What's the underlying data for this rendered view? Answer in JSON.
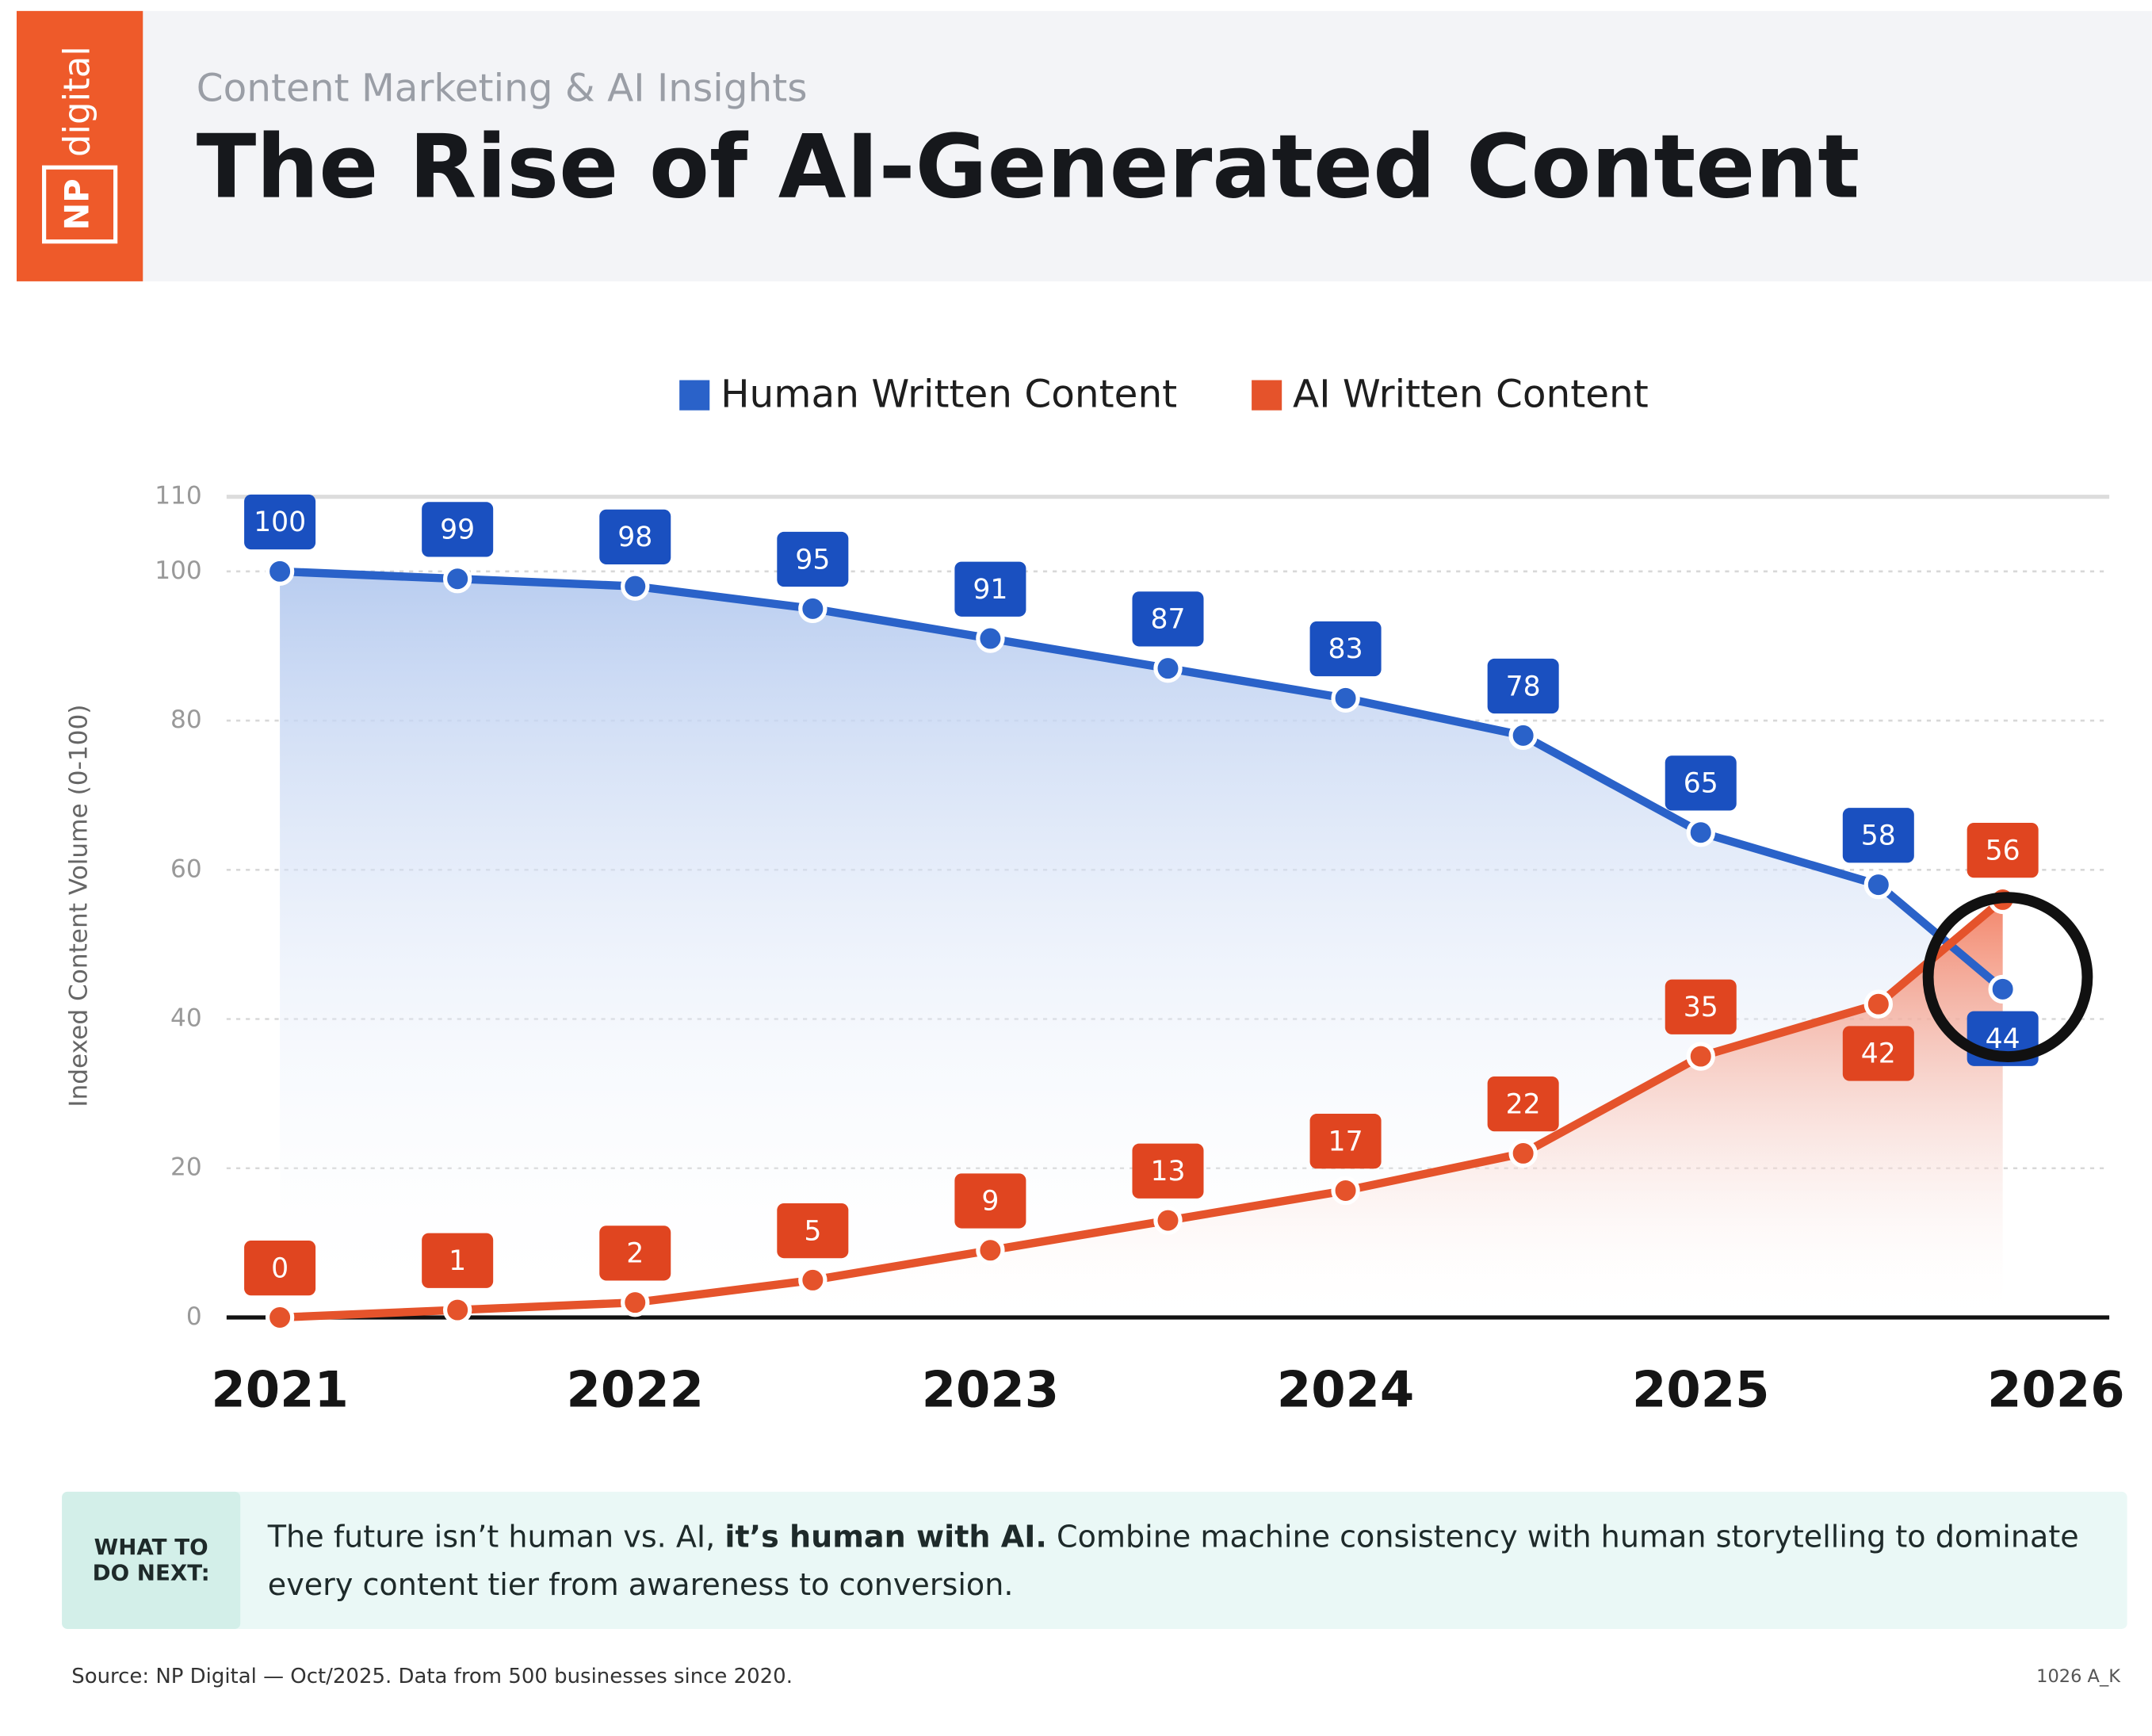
{
  "brand": {
    "top": "digital",
    "box": "NP"
  },
  "callout": {
    "label_lines": [
      "WHAT TO",
      "DO NEXT:"
    ],
    "text_parts": [
      "The future isn’t human vs. AI, ",
      "it’s human with AI.",
      " Combine machine consistency with human storytelling to dominate",
      "every content tier from awareness to conversion."
    ]
  },
  "source": "Source: NP Digital — Oct/2025. Data from 500 businesses since 2020.",
  "code": "1026 A_K",
  "chart_data": {
    "type": "line",
    "subtitle": "Content Marketing & AI Insights",
    "title": "The Rise of AI-Generated Content",
    "y_label": "Indexed Content Volume (0-100)",
    "x": [
      2021,
      2021.5,
      2022,
      2022.5,
      2023,
      2023.5,
      2024,
      2024.5,
      2025,
      2025.5,
      2025.85
    ],
    "xlim": [
      2020.85,
      2026.15
    ],
    "xticks": [
      2021,
      2022,
      2023,
      2024,
      2025,
      2026
    ],
    "ylim": [
      0,
      110
    ],
    "yticks": [
      0,
      20,
      40,
      60,
      80,
      100,
      110
    ],
    "grid": true,
    "series": [
      {
        "name": "Human Written Content",
        "color": "#2a62c9",
        "values": [
          100,
          99,
          98,
          95,
          91,
          87,
          83,
          78,
          65,
          58,
          44
        ]
      },
      {
        "name": "AI Written Content",
        "color": "#e5532b",
        "values": [
          0,
          1,
          2,
          5,
          9,
          13,
          17,
          22,
          35,
          42,
          56
        ]
      }
    ]
  }
}
